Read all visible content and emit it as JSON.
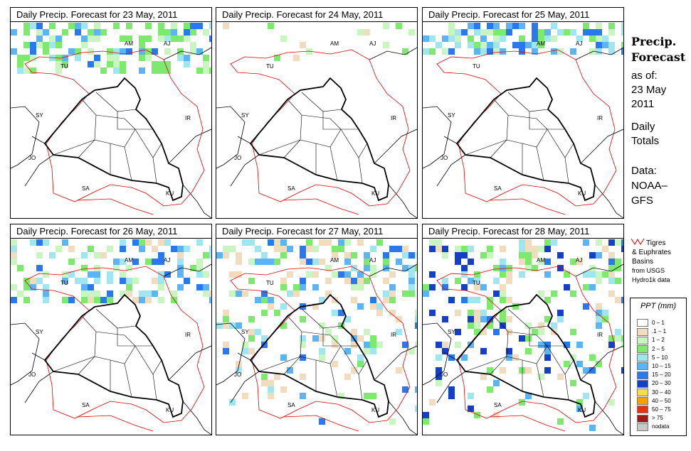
{
  "panels": [
    {
      "title": "Daily Precip. Forecast for  23 May, 2011"
    },
    {
      "title": "Daily Precip. Forecast for  24 May, 2011"
    },
    {
      "title": "Daily Precip. Forecast for  25 May, 2011"
    },
    {
      "title": "Daily Precip. Forecast for  26 May, 2011"
    },
    {
      "title": "Daily Precip. Forecast for  27 May, 2011"
    },
    {
      "title": "Daily Precip. Forecast for  28 May, 2011"
    }
  ],
  "map_labels": {
    "am": "AM",
    "aj": "AJ",
    "tu": "TU",
    "sy": "SY",
    "ir": "IR",
    "jo": "JO",
    "sa": "SA",
    "ku": "KU"
  },
  "side": {
    "title_line1": "Precip.",
    "title_line2": "Forecast",
    "asof": "as of:",
    "date1": "23 May",
    "date2": "2011",
    "daily1": "Daily",
    "daily2": "Totals",
    "data1": "Data:",
    "data2": "NOAA–",
    "data3": "GFS"
  },
  "basin_note": {
    "line1": "Tigres",
    "line2": "& Euphrates",
    "line3": "Basins",
    "line4": "from USGS",
    "line5": "Hydro1k data",
    "line_color": "#dd0000"
  },
  "legend": {
    "title": "PPT (mm)",
    "items": [
      {
        "label": "0 – 1",
        "color": "#ffffff"
      },
      {
        "label": ".1 – 1",
        "color": "#f2dcc0"
      },
      {
        "label": "1 – 2",
        "color": "#c8f5c0"
      },
      {
        "label": "2 – 5",
        "color": "#7dea6e"
      },
      {
        "label": "5 – 10",
        "color": "#9fe6f0"
      },
      {
        "label": "10 – 15",
        "color": "#5ab4f5"
      },
      {
        "label": "15 – 20",
        "color": "#2a78ee"
      },
      {
        "label": "20 – 30",
        "color": "#1440c8"
      },
      {
        "label": "30 – 40",
        "color": "#f8dc50"
      },
      {
        "label": "40 – 50",
        "color": "#f8a000"
      },
      {
        "label": "50 – 75",
        "color": "#e83010"
      },
      {
        "label": "> 75",
        "color": "#a01818"
      },
      {
        "label": "nodata",
        "color": "#c8c8c8"
      }
    ]
  }
}
